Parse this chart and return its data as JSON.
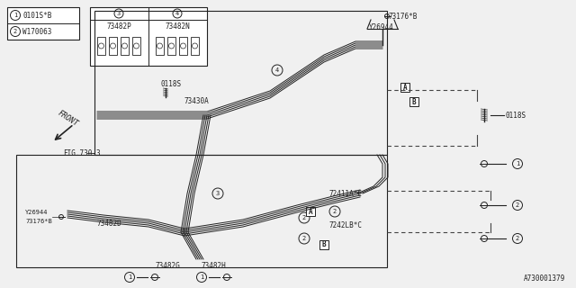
{
  "bg_color": "#f0f0f0",
  "diagram_bg": "#ffffff",
  "title_bottom": "A730001379",
  "legend_items": [
    {
      "num": "1",
      "text": "0101S*B"
    },
    {
      "num": "2",
      "text": "W170063"
    }
  ],
  "parts_table": [
    {
      "num": "3",
      "part": "73482P"
    },
    {
      "num": "4",
      "part": "73482N"
    }
  ],
  "line_color": "#222222",
  "dashed_color": "#444444"
}
